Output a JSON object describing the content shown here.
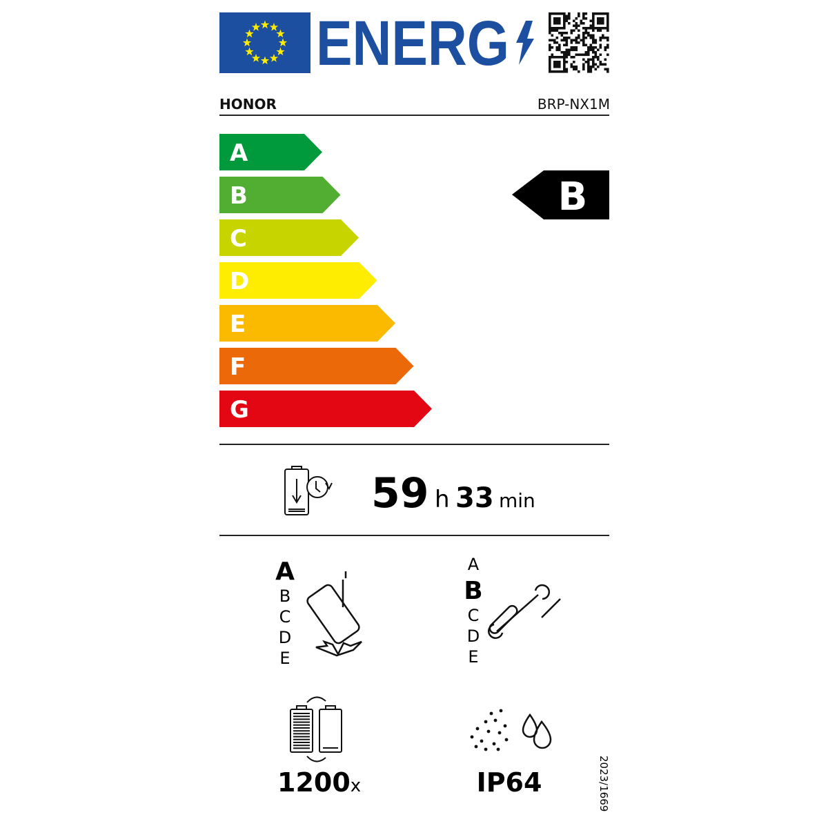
{
  "header": {
    "logo_text": "ENERG",
    "eu_flag_color": "#1d4fa0",
    "star_color": "#ffed00",
    "qr_code_icon": "qr-code"
  },
  "supplier": "HONOR",
  "model": "BRP-NX1M",
  "energy_scale": {
    "classes": [
      {
        "label": "A",
        "color": "#009a3d"
      },
      {
        "label": "B",
        "color": "#52ae32"
      },
      {
        "label": "C",
        "color": "#c8d400"
      },
      {
        "label": "D",
        "color": "#ffed00"
      },
      {
        "label": "E",
        "color": "#fbba00"
      },
      {
        "label": "F",
        "color": "#eb6909"
      },
      {
        "label": "G",
        "color": "#e30613"
      }
    ],
    "rating": "B"
  },
  "endurance": {
    "hours": "59",
    "hours_unit": "h",
    "minutes": "33",
    "minutes_unit": "min"
  },
  "drop_resistance": {
    "classes": [
      "A",
      "B",
      "C",
      "D",
      "E"
    ],
    "rating": "A"
  },
  "repairability": {
    "classes": [
      "A",
      "B",
      "C",
      "D",
      "E"
    ],
    "rating": "B"
  },
  "battery_cycles": {
    "value": "1200",
    "unit": "x"
  },
  "ingress_protection": {
    "value": "IP64"
  },
  "regulation": "2023/1669"
}
